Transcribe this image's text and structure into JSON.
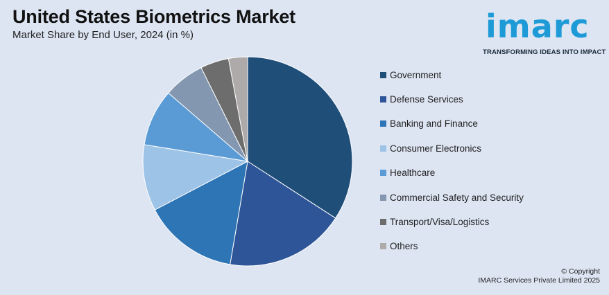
{
  "header": {
    "title": "United States Biometrics Market",
    "subtitle": "Market Share by End User, 2024 (in %)"
  },
  "logo": {
    "wordmark": "imarc",
    "tagline": "TRANSFORMING IDEAS INTO IMPACT",
    "color": "#1e9bd7"
  },
  "chart_data": {
    "type": "pie",
    "title": "United States Biometrics Market",
    "subtitle": "Market Share by End User, 2024 (in %)",
    "legend_position": "right",
    "slices": [
      {
        "label": "Government",
        "value": 35,
        "color": "#1f4e79"
      },
      {
        "label": "Defense Services",
        "value": 19,
        "color": "#2e5597"
      },
      {
        "label": "Banking and Finance",
        "value": 15,
        "color": "#2e75b6"
      },
      {
        "label": "Consumer Electronics",
        "value": 10.5,
        "color": "#9dc3e6"
      },
      {
        "label": "Healthcare",
        "value": 9,
        "color": "#5b9bd5"
      },
      {
        "label": "Commercial Safety and Security",
        "value": 6.5,
        "color": "#8497b0"
      },
      {
        "label": "Transport/Visa/Logistics",
        "value": 4.5,
        "color": "#6d6d6d"
      },
      {
        "label": "Others",
        "value": 3,
        "color": "#aeaaaa"
      }
    ]
  },
  "footer": {
    "copyright_line1": "© Copyright",
    "copyright_line2": "IMARC Services Private Limited 2025"
  }
}
